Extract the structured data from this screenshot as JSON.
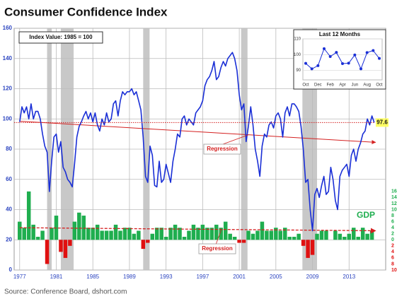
{
  "chart_data": [
    {
      "type": "line",
      "title": "Consumer Confidence Index",
      "note": "Index Value: 1985 = 100",
      "source": "Source: Conference Board, dshort.com",
      "color": "#1a2fd6",
      "x": [
        1977,
        1977.25,
        1977.5,
        1977.75,
        1978,
        1978.25,
        1978.5,
        1978.75,
        1979,
        1979.25,
        1979.5,
        1979.75,
        1980,
        1980.25,
        1980.5,
        1980.75,
        1981,
        1981.25,
        1981.5,
        1981.75,
        1982,
        1982.25,
        1982.5,
        1982.75,
        1983,
        1983.25,
        1983.5,
        1983.75,
        1984,
        1984.25,
        1984.5,
        1984.75,
        1985,
        1985.25,
        1985.5,
        1985.75,
        1986,
        1986.25,
        1986.5,
        1986.75,
        1987,
        1987.25,
        1987.5,
        1987.75,
        1988,
        1988.25,
        1988.5,
        1988.75,
        1989,
        1989.25,
        1989.5,
        1989.75,
        1990,
        1990.25,
        1990.5,
        1990.75,
        1991,
        1991.25,
        1991.5,
        1991.75,
        1992,
        1992.25,
        1992.5,
        1992.75,
        1993,
        1993.25,
        1993.5,
        1993.75,
        1994,
        1994.25,
        1994.5,
        1994.75,
        1995,
        1995.25,
        1995.5,
        1995.75,
        1996,
        1996.25,
        1996.5,
        1996.75,
        1997,
        1997.25,
        1997.5,
        1997.75,
        1998,
        1998.25,
        1998.5,
        1998.75,
        1999,
        1999.25,
        1999.5,
        1999.75,
        2000,
        2000.25,
        2000.5,
        2000.75,
        2001,
        2001.25,
        2001.5,
        2001.75,
        2002,
        2002.25,
        2002.5,
        2002.75,
        2003,
        2003.25,
        2003.5,
        2003.75,
        2004,
        2004.25,
        2004.5,
        2004.75,
        2005,
        2005.25,
        2005.5,
        2005.75,
        2006,
        2006.25,
        2006.5,
        2006.75,
        2007,
        2007.25,
        2007.5,
        2007.75,
        2008,
        2008.25,
        2008.5,
        2008.75,
        2009,
        2009.25,
        2009.5,
        2009.75,
        2010,
        2010.25,
        2010.5,
        2010.75,
        2011,
        2011.25,
        2011.5,
        2011.75,
        2012,
        2012.25,
        2012.5,
        2012.75,
        2013,
        2013.25,
        2013.5,
        2013.75,
        2014,
        2014.25,
        2014.5,
        2014.75,
        2015,
        2015.25,
        2015.5,
        2015.75
      ],
      "values": [
        98,
        108,
        104,
        108,
        100,
        110,
        100,
        105,
        105,
        100,
        90,
        82,
        78,
        52,
        72,
        88,
        90,
        78,
        85,
        68,
        65,
        60,
        58,
        55,
        70,
        88,
        95,
        98,
        102,
        105,
        100,
        104,
        98,
        104,
        96,
        92,
        100,
        96,
        104,
        98,
        100,
        110,
        112,
        102,
        112,
        118,
        116,
        118,
        118,
        120,
        116,
        118,
        112,
        106,
        88,
        62,
        58,
        82,
        76,
        56,
        55,
        72,
        58,
        60,
        70,
        64,
        58,
        72,
        80,
        90,
        88,
        100,
        102,
        96,
        100,
        98,
        96,
        104,
        106,
        108,
        112,
        122,
        126,
        128,
        132,
        138,
        126,
        128,
        134,
        138,
        135,
        140,
        142,
        144,
        140,
        132,
        116,
        106,
        110,
        85,
        95,
        108,
        96,
        80,
        72,
        62,
        82,
        90,
        88,
        96,
        98,
        94,
        102,
        104,
        100,
        88,
        104,
        108,
        102,
        110,
        110,
        108,
        105,
        95,
        80,
        58,
        60,
        40,
        26,
        50,
        54,
        48,
        56,
        62,
        50,
        52,
        68,
        60,
        46,
        40,
        62,
        66,
        68,
        70,
        62,
        76,
        80,
        72,
        80,
        84,
        90,
        92,
        100,
        96,
        102,
        97.6
      ],
      "xlim": [
        1976.4,
        2017.0
      ],
      "xticks": [
        1977,
        1981,
        1985,
        1989,
        1993,
        1997,
        2001,
        2005,
        2009,
        2013
      ],
      "ylim": [
        0,
        160
      ],
      "yticks": [
        0,
        20,
        40,
        60,
        80,
        100,
        120,
        140,
        160
      ],
      "grid": true,
      "current_value": 97.6,
      "current_color": "#d42020",
      "regression": {
        "label": "Regression",
        "color": "#d42020",
        "x": [
          1977,
          2015.9
        ],
        "values": [
          98.5,
          84.5
        ]
      },
      "recessions": [
        [
          1980.0,
          1980.5
        ],
        [
          1981.5,
          1982.9
        ],
        [
          1990.5,
          1991.2
        ],
        [
          2001.2,
          2001.9
        ],
        [
          2007.9,
          2009.5
        ]
      ],
      "recession_color": "#c8c8c8",
      "y2lim": [
        -10,
        70
      ],
      "y2ticks": [
        {
          "value": -10,
          "label": "10"
        },
        {
          "value": -8,
          "label": "8"
        },
        {
          "value": -6,
          "label": "6"
        },
        {
          "value": -4,
          "label": "4"
        },
        {
          "value": -2,
          "label": "2"
        },
        0,
        2,
        4,
        6,
        8,
        10,
        12,
        14,
        16
      ],
      "gdp": {
        "name": "GDP",
        "axis": "y2",
        "color": "#1fae4f",
        "negative_color": "#e01010",
        "x": [
          1977,
          1977.5,
          1978,
          1978.5,
          1979,
          1979.5,
          1980,
          1980.5,
          1981,
          1981.5,
          1982,
          1982.5,
          1983,
          1983.5,
          1984,
          1984.5,
          1985,
          1985.5,
          1986,
          1986.5,
          1987,
          1987.5,
          1988,
          1988.5,
          1989,
          1989.5,
          1990,
          1990.5,
          1991,
          1991.5,
          1992,
          1992.5,
          1993,
          1993.5,
          1994,
          1994.5,
          1995,
          1995.5,
          1996,
          1996.5,
          1997,
          1997.5,
          1998,
          1998.5,
          1999,
          1999.5,
          2000,
          2000.5,
          2001,
          2001.5,
          2002,
          2002.5,
          2003,
          2003.5,
          2004,
          2004.5,
          2005,
          2005.5,
          2006,
          2006.5,
          2007,
          2007.5,
          2008,
          2008.5,
          2009,
          2009.5,
          2010,
          2010.5,
          2011,
          2011.5,
          2012,
          2012.5,
          2013,
          2013.5,
          2014,
          2014.5,
          2015,
          2015.5
        ],
        "values": [
          6,
          4,
          16,
          5,
          1,
          3,
          -8,
          4,
          8,
          -4,
          -6,
          -2,
          6,
          9,
          8,
          4,
          4,
          5,
          3,
          3,
          3,
          5,
          3,
          4,
          4,
          2,
          3,
          -3,
          -1,
          2,
          4,
          4,
          1,
          4,
          5,
          4,
          1,
          3,
          5,
          4,
          5,
          4,
          4,
          5,
          4,
          6,
          2,
          1,
          -1,
          -1,
          3,
          2,
          3,
          6,
          3,
          3,
          4,
          3,
          4,
          1,
          1,
          2,
          -2,
          -6,
          -5,
          2,
          3,
          3,
          0,
          3,
          2,
          1,
          2,
          4,
          1,
          4,
          2,
          3
        ],
        "regression": {
          "label": "Regression",
          "color": "#d42020",
          "x": [
            1977,
            2015.9
          ],
          "values": [
            4,
            3
          ]
        }
      }
    },
    {
      "type": "line",
      "title": "Last 12 Months",
      "color": "#1a2fd6",
      "categories": [
        "Oct",
        null,
        "Dec",
        null,
        "Feb",
        null,
        "Apr",
        null,
        "Jun",
        null,
        "Aug",
        null,
        "Oct"
      ],
      "values": [
        94.5,
        91,
        93,
        103.8,
        98.8,
        101.4,
        94.3,
        94.6,
        99.8,
        91,
        101.3,
        102.6,
        97.6
      ],
      "ylim": [
        84,
        110
      ],
      "yticks": [
        90,
        100,
        110
      ],
      "grid": true,
      "markers": true
    }
  ]
}
